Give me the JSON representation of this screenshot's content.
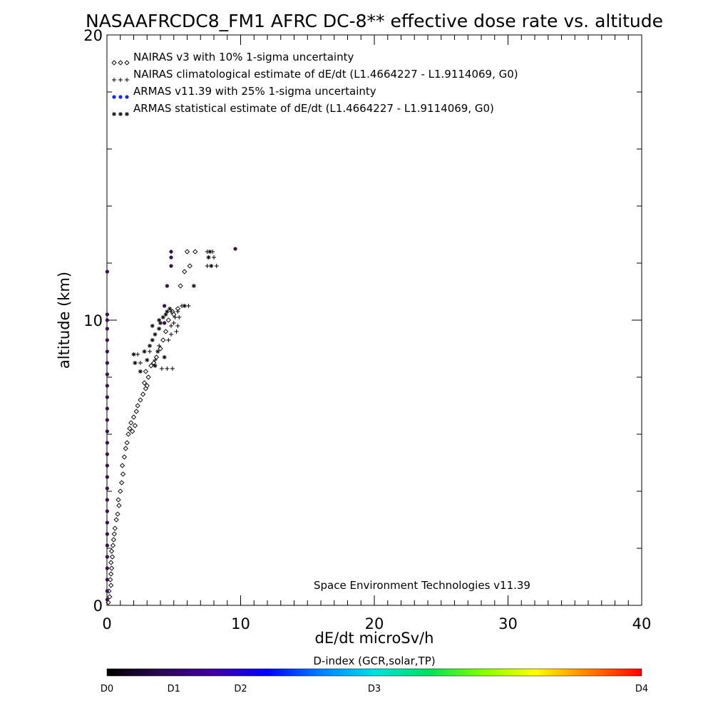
{
  "chart_data": {
    "type": "scatter",
    "title": "NASAAFRCDC8_FM1 AFRC DC-8** effective dose rate vs. altitude",
    "xlabel": "dE/dt microSv/h",
    "ylabel": "altitude (km)",
    "xlim": [
      0,
      40
    ],
    "ylim": [
      0,
      20
    ],
    "x_ticks": [
      0,
      10,
      20,
      30,
      40
    ],
    "y_ticks": [
      0,
      10,
      20
    ],
    "x_minor_step": 1,
    "y_minor_step": 2,
    "grid": false,
    "legend_position": "top-left",
    "legend": [
      {
        "marker": "◇◇◇",
        "label": "NAIRAS v3 with 10% 1-sigma uncertainty"
      },
      {
        "marker": "+++",
        "label": "NAIRAS climatological estimate of dE/dt (L1.4664227 - L1.9114069, G0)"
      },
      {
        "marker": "●●●",
        "label": "ARMAS v11.39 with 25% 1-sigma uncertainty"
      },
      {
        "marker": "***",
        "label": "ARMAS statistical estimate of dE/dt (L1.4664227 - L1.9114069, G0)"
      }
    ],
    "annotation": "Space Environment Technologies v11.39",
    "colorbar": {
      "title": "D-index (GCR,solar,TP)",
      "labels": [
        {
          "text": "D0",
          "value": 0
        },
        {
          "text": "D1",
          "value": 0.125
        },
        {
          "text": "D2",
          "value": 0.25
        },
        {
          "text": "D3",
          "value": 0.5
        },
        {
          "text": "D4",
          "value": 1.0
        }
      ],
      "colors": [
        "#000000",
        "#2a0a50",
        "#4000a0",
        "#0000ff",
        "#0080ff",
        "#00e0e0",
        "#00e060",
        "#80ff00",
        "#ffff00",
        "#ff8000",
        "#ff0000"
      ]
    },
    "series": [
      {
        "name": "NAIRAS v3 with 10% 1-sigma uncertainty",
        "marker": "diamond",
        "color": "#000000",
        "points": [
          [
            0.1,
            0.1
          ],
          [
            0.2,
            0.3
          ],
          [
            0.15,
            0.5
          ],
          [
            0.3,
            0.7
          ],
          [
            0.25,
            0.9
          ],
          [
            0.3,
            1.1
          ],
          [
            0.35,
            1.3
          ],
          [
            0.3,
            1.5
          ],
          [
            0.4,
            1.7
          ],
          [
            0.35,
            1.9
          ],
          [
            0.45,
            2.1
          ],
          [
            0.5,
            2.3
          ],
          [
            0.55,
            2.5
          ],
          [
            0.6,
            2.7
          ],
          [
            0.7,
            3.0
          ],
          [
            0.8,
            3.2
          ],
          [
            0.9,
            3.5
          ],
          [
            0.85,
            3.7
          ],
          [
            1.0,
            4.0
          ],
          [
            1.1,
            4.3
          ],
          [
            1.2,
            4.6
          ],
          [
            1.15,
            4.9
          ],
          [
            1.3,
            5.2
          ],
          [
            1.4,
            5.5
          ],
          [
            1.5,
            5.7
          ],
          [
            1.6,
            6.0
          ],
          [
            1.7,
            6.2
          ],
          [
            1.8,
            6.4
          ],
          [
            2.0,
            6.6
          ],
          [
            2.1,
            6.3
          ],
          [
            1.9,
            6.1
          ],
          [
            2.2,
            6.8
          ],
          [
            2.3,
            7.0
          ],
          [
            2.5,
            7.2
          ],
          [
            2.7,
            7.4
          ],
          [
            2.9,
            7.6
          ],
          [
            3.0,
            7.7
          ],
          [
            2.8,
            7.8
          ],
          [
            3.1,
            8.0
          ],
          [
            2.9,
            8.2
          ],
          [
            3.3,
            8.4
          ],
          [
            3.5,
            8.5
          ],
          [
            3.7,
            8.7
          ],
          [
            4.0,
            9.0
          ],
          [
            4.2,
            9.3
          ],
          [
            4.4,
            9.6
          ],
          [
            4.6,
            10.0
          ],
          [
            5.0,
            10.2
          ],
          [
            5.3,
            10.4
          ],
          [
            4.9,
            10.3
          ],
          [
            5.5,
            11.2
          ],
          [
            5.8,
            11.7
          ],
          [
            6.2,
            11.9
          ],
          [
            6.6,
            12.4
          ],
          [
            6.0,
            12.4
          ]
        ]
      },
      {
        "name": "NAIRAS climatological estimate of dE/dt (L1.4664227 - L1.9114069, G0)",
        "marker": "plus",
        "color": "#000000",
        "points": [
          [
            2.3,
            8.8
          ],
          [
            2.5,
            8.5
          ],
          [
            3.2,
            8.9
          ],
          [
            3.6,
            8.6
          ],
          [
            4.1,
            8.3
          ],
          [
            4.5,
            8.3
          ],
          [
            4.9,
            8.3
          ],
          [
            3.9,
            9.1
          ],
          [
            4.6,
            9.3
          ],
          [
            4.8,
            9.5
          ],
          [
            5.2,
            9.6
          ],
          [
            5.0,
            9.9
          ],
          [
            5.1,
            10.1
          ],
          [
            5.4,
            10.1
          ],
          [
            4.8,
            10.3
          ],
          [
            5.3,
            10.3
          ],
          [
            5.6,
            10.5
          ],
          [
            6.1,
            10.5
          ],
          [
            5.3,
            9.8
          ],
          [
            4.8,
            9.8
          ],
          [
            7.5,
            12.4
          ],
          [
            7.9,
            12.4
          ],
          [
            8.0,
            12.2
          ],
          [
            8.2,
            11.9
          ],
          [
            7.5,
            11.9
          ]
        ]
      },
      {
        "name": "ARMAS v11.39 with 25% 1-sigma uncertainty",
        "marker": "dot",
        "color": "#3a1050",
        "points": [
          [
            0.02,
            0.2
          ],
          [
            0.02,
            0.5
          ],
          [
            0.02,
            0.9
          ],
          [
            0.02,
            1.3
          ],
          [
            0.02,
            1.7
          ],
          [
            0.02,
            2.1
          ],
          [
            0.02,
            2.5
          ],
          [
            0.02,
            2.9
          ],
          [
            0.02,
            3.3
          ],
          [
            0.02,
            3.7
          ],
          [
            0.02,
            4.1
          ],
          [
            0.02,
            4.5
          ],
          [
            0.02,
            4.9
          ],
          [
            0.02,
            5.3
          ],
          [
            0.02,
            5.7
          ],
          [
            0.02,
            6.1
          ],
          [
            0.02,
            6.5
          ],
          [
            0.02,
            6.9
          ],
          [
            0.02,
            7.3
          ],
          [
            0.02,
            7.7
          ],
          [
            0.02,
            8.1
          ],
          [
            0.02,
            8.5
          ],
          [
            0.02,
            8.9
          ],
          [
            0.02,
            9.3
          ],
          [
            0.02,
            9.7
          ],
          [
            0.02,
            10.0
          ],
          [
            0.02,
            10.2
          ],
          [
            0.02,
            11.7
          ],
          [
            4.3,
            9.9
          ],
          [
            4.3,
            10.5
          ],
          [
            4.5,
            11.2
          ],
          [
            4.8,
            11.9
          ],
          [
            4.8,
            12.2
          ],
          [
            4.8,
            12.4
          ],
          [
            9.6,
            12.5
          ]
        ]
      },
      {
        "name": "ARMAS statistical estimate of dE/dt (L1.4664227 - L1.9114069, G0)",
        "marker": "asterisk",
        "color": "#000000",
        "points": [
          [
            2.0,
            8.8
          ],
          [
            2.1,
            8.5
          ],
          [
            2.5,
            8.2
          ],
          [
            2.8,
            8.9
          ],
          [
            3.0,
            8.6
          ],
          [
            3.2,
            9.1
          ],
          [
            3.4,
            9.3
          ],
          [
            3.6,
            9.5
          ],
          [
            3.9,
            9.7
          ],
          [
            4.0,
            9.9
          ],
          [
            4.2,
            10.1
          ],
          [
            4.5,
            10.3
          ],
          [
            4.7,
            10.4
          ],
          [
            4.3,
            8.7
          ],
          [
            3.8,
            8.9
          ],
          [
            3.4,
            9.8
          ],
          [
            3.9,
            10.0
          ],
          [
            4.4,
            10.2
          ],
          [
            5.8,
            10.5
          ],
          [
            7.7,
            12.4
          ],
          [
            7.6,
            12.2
          ],
          [
            7.8,
            11.9
          ],
          [
            6.5,
            11.2
          ],
          [
            3.6,
            8.4
          ]
        ]
      }
    ]
  }
}
